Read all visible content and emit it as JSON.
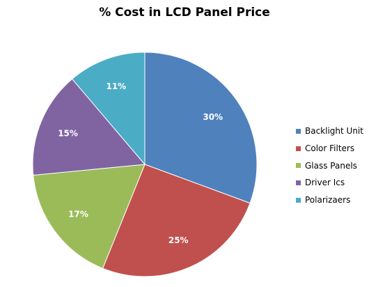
{
  "chart_data": {
    "type": "pie",
    "title": "% Cost  in LCD Panel Price",
    "categories": [
      "Backlight Unit",
      "Color Filters",
      "Glass Panels",
      "Driver Ics",
      "Polarizaers"
    ],
    "values": [
      30,
      25,
      17,
      15,
      11
    ],
    "data_labels": [
      "30%",
      "25%",
      "17%",
      "15%",
      "11%"
    ],
    "colors": [
      "#4F81BD",
      "#C0504D",
      "#9BBB59",
      "#8064A2",
      "#4BACC6"
    ],
    "legend_position": "right"
  }
}
